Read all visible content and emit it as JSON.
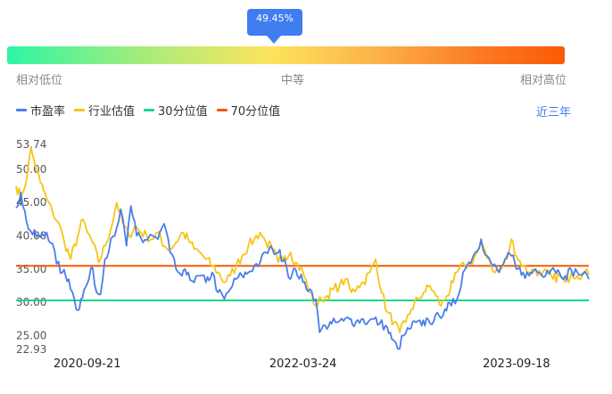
{
  "gauge": {
    "percentile_label": "49.45%",
    "percentile": 49.45,
    "low_label": "相对低位",
    "mid_label": "中等",
    "high_label": "相对高位"
  },
  "period_label": "近三年",
  "colors": {
    "pe": "#4a7ee8",
    "industry": "#f5c518",
    "p30": "#1ed68a",
    "p70": "#f55a05",
    "accent": "#3f7df0"
  },
  "chart_data": {
    "type": "line",
    "x_ticks": [
      "2020-09-21",
      "2022-03-24",
      "2023-09-18"
    ],
    "y_ticks": [
      "53.74",
      "50.00",
      "45.00",
      "40.00",
      "35.00",
      "30.00",
      "25.00",
      "22.93"
    ],
    "ylim": [
      22.93,
      53.74
    ],
    "xlim": [
      "2020-03-24",
      "2024-03-20"
    ],
    "legend_position": "top-left",
    "series": [
      {
        "name": "市盈率",
        "color": "#4a7ee8",
        "points": [
          [
            "2020-03-24",
            44.2
          ],
          [
            "2020-04-05",
            46.5
          ],
          [
            "2020-04-20",
            42.0
          ],
          [
            "2020-05-05",
            40.2
          ],
          [
            "2020-05-25",
            39.8
          ],
          [
            "2020-06-10",
            40.5
          ],
          [
            "2020-06-25",
            38.8
          ],
          [
            "2020-07-05",
            35.8
          ],
          [
            "2020-07-20",
            34.5
          ],
          [
            "2020-08-05",
            33.5
          ],
          [
            "2020-08-20",
            30.2
          ],
          [
            "2020-08-28",
            28.8
          ],
          [
            "2020-09-05",
            30.5
          ],
          [
            "2020-09-21",
            32.8
          ],
          [
            "2020-10-05",
            35.2
          ],
          [
            "2020-10-15",
            31.5
          ],
          [
            "2020-10-25",
            31.2
          ],
          [
            "2020-11-05",
            36.5
          ],
          [
            "2020-11-20",
            39.5
          ],
          [
            "2020-12-05",
            41.2
          ],
          [
            "2020-12-15",
            44.0
          ],
          [
            "2020-12-30",
            38.5
          ],
          [
            "2021-01-10",
            44.5
          ],
          [
            "2021-01-25",
            40.0
          ],
          [
            "2021-02-10",
            39.0
          ],
          [
            "2021-03-01",
            40.2
          ],
          [
            "2021-03-20",
            39.5
          ],
          [
            "2021-04-05",
            41.8
          ],
          [
            "2021-04-20",
            37.5
          ],
          [
            "2021-05-05",
            35.0
          ],
          [
            "2021-05-20",
            34.0
          ],
          [
            "2021-06-05",
            34.5
          ],
          [
            "2021-06-20",
            33.0
          ],
          [
            "2021-07-05",
            34.0
          ],
          [
            "2021-07-20",
            33.0
          ],
          [
            "2021-08-05",
            34.5
          ],
          [
            "2021-08-20",
            31.5
          ],
          [
            "2021-09-05",
            30.5
          ],
          [
            "2021-09-20",
            32.0
          ],
          [
            "2021-10-05",
            33.5
          ],
          [
            "2021-10-20",
            34.0
          ],
          [
            "2021-11-05",
            34.5
          ],
          [
            "2021-11-20",
            35.5
          ],
          [
            "2021-12-05",
            36.0
          ],
          [
            "2021-12-20",
            37.5
          ],
          [
            "2022-01-05",
            38.0
          ],
          [
            "2022-01-20",
            37.5
          ],
          [
            "2022-02-05",
            36.5
          ],
          [
            "2022-02-20",
            33.5
          ],
          [
            "2022-03-05",
            35.0
          ],
          [
            "2022-03-24",
            33.0
          ],
          [
            "2022-04-10",
            32.0
          ],
          [
            "2022-04-25",
            30.5
          ],
          [
            "2022-05-05",
            25.5
          ],
          [
            "2022-05-20",
            26.5
          ],
          [
            "2022-06-05",
            26.8
          ],
          [
            "2022-06-20",
            27.0
          ],
          [
            "2022-07-05",
            27.2
          ],
          [
            "2022-07-20",
            27.5
          ],
          [
            "2022-08-05",
            27.0
          ],
          [
            "2022-08-20",
            27.5
          ],
          [
            "2022-09-05",
            27.0
          ],
          [
            "2022-09-20",
            27.5
          ],
          [
            "2022-10-05",
            26.8
          ],
          [
            "2022-10-20",
            26.5
          ],
          [
            "2022-11-05",
            24.5
          ],
          [
            "2022-11-20",
            23.0
          ],
          [
            "2022-12-05",
            25.0
          ],
          [
            "2022-12-20",
            26.0
          ],
          [
            "2023-01-05",
            27.0
          ],
          [
            "2023-01-20",
            26.5
          ],
          [
            "2023-02-05",
            27.5
          ],
          [
            "2023-02-20",
            27.2
          ],
          [
            "2023-03-05",
            28.0
          ],
          [
            "2023-03-20",
            29.0
          ],
          [
            "2023-04-05",
            29.5
          ],
          [
            "2023-04-20",
            30.5
          ],
          [
            "2023-05-05",
            34.5
          ],
          [
            "2023-05-20",
            36.0
          ],
          [
            "2023-06-05",
            37.5
          ],
          [
            "2023-06-20",
            39.5
          ],
          [
            "2023-07-05",
            37.0
          ],
          [
            "2023-07-20",
            35.5
          ],
          [
            "2023-08-05",
            34.5
          ],
          [
            "2023-08-20",
            36.5
          ],
          [
            "2023-09-05",
            37.0
          ],
          [
            "2023-09-18",
            35.0
          ],
          [
            "2023-10-05",
            34.5
          ],
          [
            "2023-10-20",
            34.0
          ],
          [
            "2023-11-05",
            35.0
          ],
          [
            "2023-11-20",
            34.2
          ],
          [
            "2023-12-05",
            34.8
          ],
          [
            "2023-12-20",
            35.2
          ],
          [
            "2024-01-05",
            34.5
          ],
          [
            "2024-01-20",
            34.0
          ],
          [
            "2024-02-05",
            34.8
          ],
          [
            "2024-02-20",
            34.5
          ],
          [
            "2024-03-05",
            34.2
          ],
          [
            "2024-03-20",
            33.5
          ]
        ]
      },
      {
        "name": "行业估值",
        "color": "#f5c518",
        "points": [
          [
            "2020-03-24",
            47.5
          ],
          [
            "2020-04-05",
            46.0
          ],
          [
            "2020-04-20",
            48.5
          ],
          [
            "2020-05-01",
            53.2
          ],
          [
            "2020-05-10",
            51.0
          ],
          [
            "2020-05-25",
            48.0
          ],
          [
            "2020-06-10",
            45.5
          ],
          [
            "2020-06-25",
            43.5
          ],
          [
            "2020-07-10",
            42.0
          ],
          [
            "2020-07-25",
            39.0
          ],
          [
            "2020-08-10",
            36.5
          ],
          [
            "2020-08-28",
            40.0
          ],
          [
            "2020-09-10",
            42.5
          ],
          [
            "2020-09-21",
            40.5
          ],
          [
            "2020-10-05",
            39.0
          ],
          [
            "2020-10-20",
            36.0
          ],
          [
            "2020-11-05",
            38.5
          ],
          [
            "2020-11-20",
            41.0
          ],
          [
            "2020-12-05",
            45.0
          ],
          [
            "2020-12-20",
            42.0
          ],
          [
            "2021-01-05",
            40.0
          ],
          [
            "2021-01-20",
            41.5
          ],
          [
            "2021-02-05",
            40.5
          ],
          [
            "2021-02-20",
            40.0
          ],
          [
            "2021-03-05",
            39.5
          ],
          [
            "2021-03-20",
            40.5
          ],
          [
            "2021-04-05",
            38.5
          ],
          [
            "2021-04-20",
            38.0
          ],
          [
            "2021-05-05",
            39.0
          ],
          [
            "2021-05-20",
            40.5
          ],
          [
            "2021-06-05",
            39.5
          ],
          [
            "2021-06-20",
            38.0
          ],
          [
            "2021-07-05",
            37.5
          ],
          [
            "2021-07-20",
            36.5
          ],
          [
            "2021-08-05",
            35.5
          ],
          [
            "2021-08-20",
            34.5
          ],
          [
            "2021-09-05",
            33.0
          ],
          [
            "2021-09-20",
            34.0
          ],
          [
            "2021-10-05",
            35.5
          ],
          [
            "2021-10-20",
            37.0
          ],
          [
            "2021-11-05",
            38.5
          ],
          [
            "2021-11-20",
            39.5
          ],
          [
            "2021-12-05",
            40.5
          ],
          [
            "2021-12-20",
            39.0
          ],
          [
            "2022-01-05",
            38.0
          ],
          [
            "2022-01-20",
            36.0
          ],
          [
            "2022-02-05",
            37.0
          ],
          [
            "2022-02-20",
            37.5
          ],
          [
            "2022-03-05",
            36.0
          ],
          [
            "2022-03-24",
            34.5
          ],
          [
            "2022-04-10",
            31.5
          ],
          [
            "2022-04-25",
            29.5
          ],
          [
            "2022-05-10",
            30.5
          ],
          [
            "2022-05-25",
            31.0
          ],
          [
            "2022-06-10",
            32.0
          ],
          [
            "2022-06-25",
            32.5
          ],
          [
            "2022-07-10",
            33.5
          ],
          [
            "2022-07-25",
            31.5
          ],
          [
            "2022-08-10",
            32.5
          ],
          [
            "2022-08-25",
            33.0
          ],
          [
            "2022-09-10",
            34.5
          ],
          [
            "2022-09-25",
            36.5
          ],
          [
            "2022-10-10",
            31.5
          ],
          [
            "2022-10-25",
            28.5
          ],
          [
            "2022-11-10",
            27.0
          ],
          [
            "2022-11-25",
            25.5
          ],
          [
            "2022-12-10",
            27.0
          ],
          [
            "2022-12-25",
            29.0
          ],
          [
            "2023-01-10",
            30.5
          ],
          [
            "2023-01-25",
            31.5
          ],
          [
            "2023-02-10",
            32.5
          ],
          [
            "2023-02-25",
            31.0
          ],
          [
            "2023-03-10",
            29.5
          ],
          [
            "2023-03-25",
            31.0
          ],
          [
            "2023-04-10",
            33.0
          ],
          [
            "2023-04-25",
            35.0
          ],
          [
            "2023-05-10",
            35.5
          ],
          [
            "2023-05-25",
            36.0
          ],
          [
            "2023-06-10",
            37.5
          ],
          [
            "2023-06-25",
            38.5
          ],
          [
            "2023-07-10",
            36.5
          ],
          [
            "2023-07-25",
            34.5
          ],
          [
            "2023-08-10",
            35.0
          ],
          [
            "2023-08-25",
            36.5
          ],
          [
            "2023-09-05",
            39.5
          ],
          [
            "2023-09-18",
            37.0
          ],
          [
            "2023-10-05",
            35.5
          ],
          [
            "2023-10-20",
            34.5
          ],
          [
            "2023-11-05",
            35.0
          ],
          [
            "2023-11-20",
            34.0
          ],
          [
            "2023-12-05",
            34.5
          ],
          [
            "2023-12-20",
            33.5
          ],
          [
            "2024-01-05",
            34.0
          ],
          [
            "2024-01-20",
            33.0
          ],
          [
            "2024-02-05",
            34.5
          ],
          [
            "2024-02-20",
            34.0
          ],
          [
            "2024-03-05",
            34.5
          ],
          [
            "2024-03-20",
            34.2
          ]
        ]
      },
      {
        "name": "30分位值",
        "color": "#1ed68a",
        "points": [
          [
            "2020-03-24",
            30.3
          ],
          [
            "2024-03-20",
            30.3
          ]
        ]
      },
      {
        "name": "70分位值",
        "color": "#f55a05",
        "points": [
          [
            "2020-03-24",
            35.5
          ],
          [
            "2024-03-20",
            35.5
          ]
        ]
      }
    ]
  }
}
